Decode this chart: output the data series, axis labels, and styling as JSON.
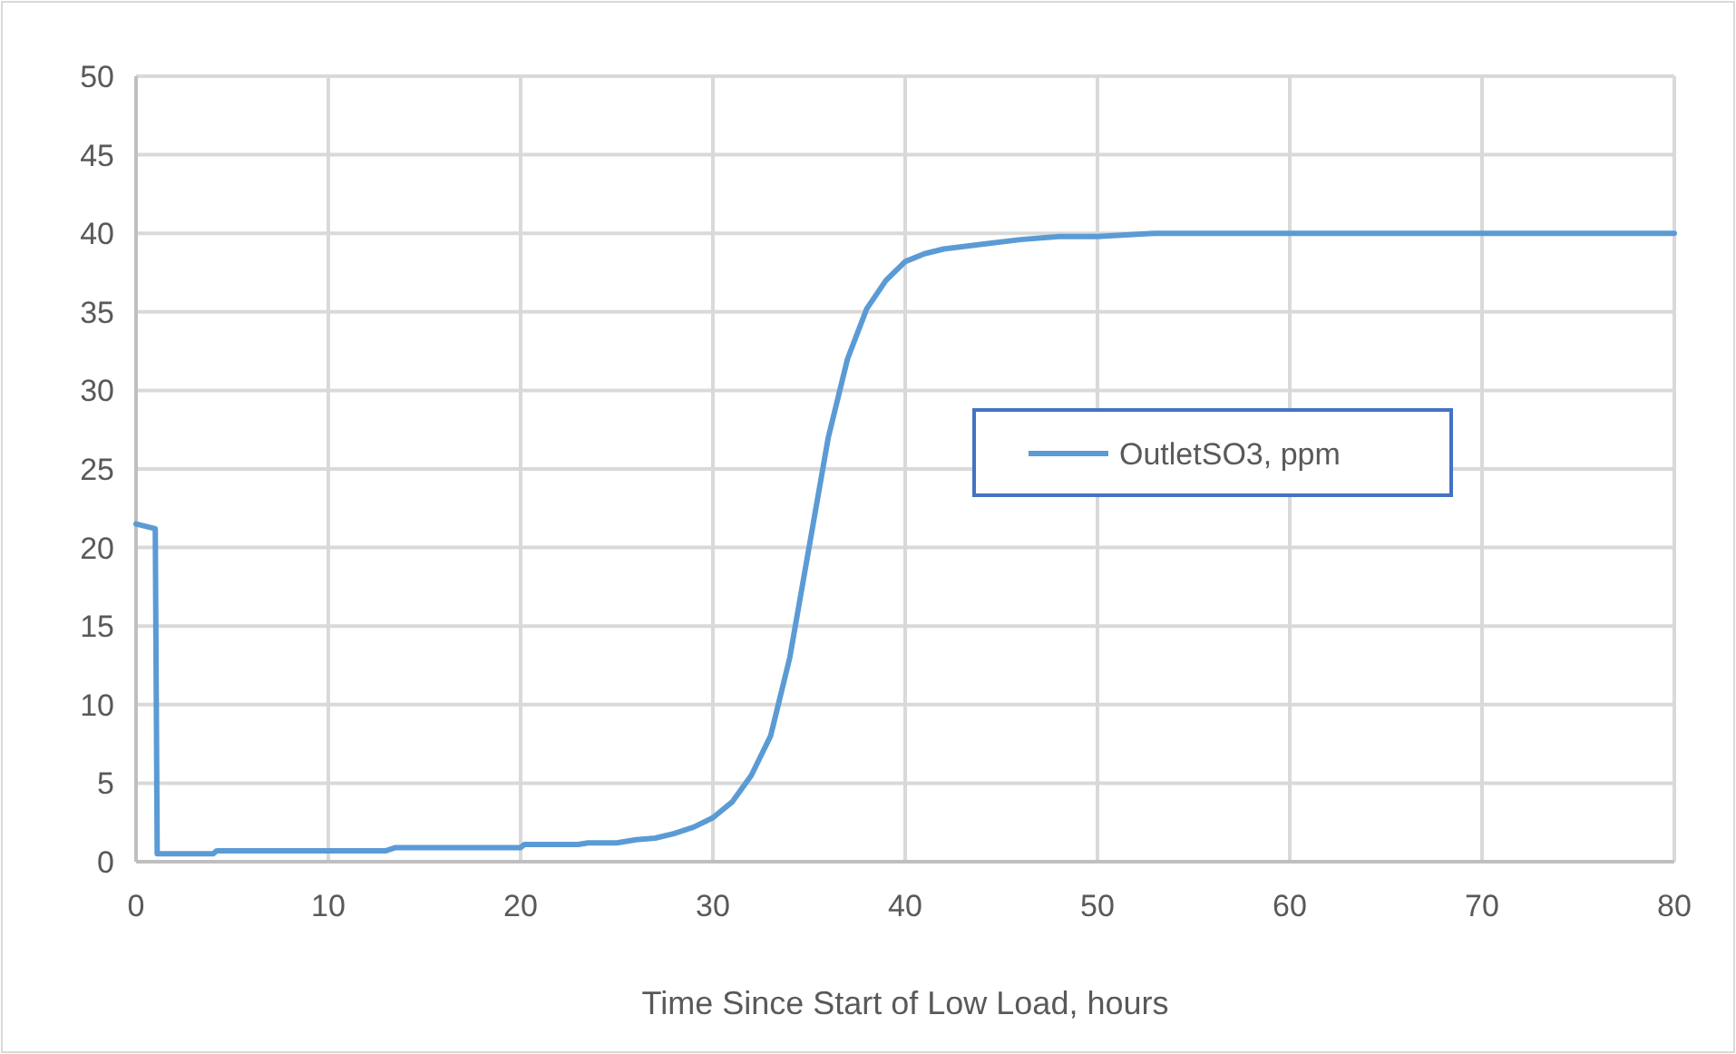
{
  "chart_data": {
    "type": "line",
    "xlabel": "Time Since Start of Low Load, hours",
    "x": [
      0,
      1,
      1.1,
      4,
      4.2,
      13,
      13.5,
      20,
      20.2,
      23,
      23.5,
      25,
      26,
      27,
      28,
      29,
      30,
      31,
      32,
      33,
      34,
      35,
      36,
      37,
      38,
      39,
      40,
      41,
      42,
      44,
      46,
      48,
      50,
      53,
      80
    ],
    "series": [
      {
        "name": "OutletSO3, ppm",
        "color": "#5b9bd5",
        "values": [
          21.5,
          21.2,
          0.5,
          0.5,
          0.7,
          0.7,
          0.9,
          0.9,
          1.1,
          1.1,
          1.2,
          1.2,
          1.4,
          1.5,
          1.8,
          2.2,
          2.8,
          3.8,
          5.5,
          8,
          13,
          20,
          27,
          32,
          35.2,
          37,
          38.2,
          38.7,
          39,
          39.3,
          39.6,
          39.8,
          39.8,
          40,
          40
        ]
      }
    ],
    "xlim": [
      0,
      80
    ],
    "xticks": [
      0,
      10,
      20,
      30,
      40,
      50,
      60,
      70,
      80
    ],
    "ylim": [
      0,
      50
    ],
    "yticks": [
      0,
      5,
      10,
      15,
      20,
      25,
      30,
      35,
      40,
      45,
      50
    ],
    "grid": true,
    "legend": "right",
    "marker": "none",
    "line_style": "solid"
  }
}
